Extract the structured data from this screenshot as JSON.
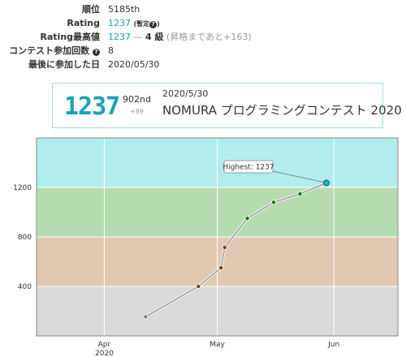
{
  "profile": {
    "rank_label": "順位",
    "rank_value": "5185th",
    "rating_label": "Rating",
    "rating_value": "1237",
    "rating_provisional": "(暫定",
    "rating_provisional_close": ")",
    "max_rating_label": "Rating最高値",
    "max_rating_value": "1237",
    "max_rating_dash": " — ",
    "max_rating_kyu": "4 級",
    "max_rating_next": " (昇格まであと+163)",
    "contests_label": "コンテスト参加回数",
    "contests_value": "8",
    "last_label": "最後に参加した日",
    "last_value": "2020/05/30",
    "question_icon": "?"
  },
  "contest_card": {
    "rating": "1237",
    "place": "902nd",
    "delta": "+89",
    "date": "2020/5/30",
    "name": "NOMURA プログラミングコンテスト 2020"
  },
  "colors": {
    "accent": "#17a2b8",
    "band_cyan": "#b2eded",
    "band_green": "#b6dbb1",
    "band_brown": "#e0c8b3",
    "band_gray": "#d9d9d9",
    "line": "#aaaaaa",
    "dot_gray": "#808080",
    "dot_brown": "#804000",
    "dot_green": "#008000",
    "dot_cyan": "#00c0c0"
  },
  "chart_data": {
    "type": "line",
    "x_ticks": [
      {
        "date": "2020-04-01",
        "label": "Apr",
        "sublabel": "2020"
      },
      {
        "date": "2020-05-01",
        "label": "May",
        "sublabel": ""
      },
      {
        "date": "2020-06-01",
        "label": "Jun",
        "sublabel": ""
      }
    ],
    "y_ticks": [
      400,
      800,
      1200
    ],
    "ylim": [
      0,
      1600
    ],
    "xlim": [
      "2020-03-14",
      "2020-06-18"
    ],
    "bands": [
      {
        "from": 0,
        "to": 400,
        "color": "#d9d9d9"
      },
      {
        "from": 400,
        "to": 800,
        "color": "#e0c8b3"
      },
      {
        "from": 800,
        "to": 1200,
        "color": "#b6dbb1"
      },
      {
        "from": 1200,
        "to": 1600,
        "color": "#b2eded"
      }
    ],
    "series": [
      {
        "points": [
          {
            "x": "2020-04-12",
            "y": 155,
            "color": "#808080"
          },
          {
            "x": "2020-04-26",
            "y": 400,
            "color": "#804000"
          },
          {
            "x": "2020-05-02",
            "y": 550,
            "color": "#804000"
          },
          {
            "x": "2020-05-03",
            "y": 715,
            "color": "#804000"
          },
          {
            "x": "2020-05-09",
            "y": 950,
            "color": "#008000"
          },
          {
            "x": "2020-05-16",
            "y": 1080,
            "color": "#008000"
          },
          {
            "x": "2020-05-23",
            "y": 1148,
            "color": "#008000"
          },
          {
            "x": "2020-05-30",
            "y": 1237,
            "color": "#00c0c0"
          }
        ]
      }
    ],
    "annotation": {
      "text": "Highest: 1237",
      "x": "2020-05-30",
      "y": 1237
    }
  }
}
